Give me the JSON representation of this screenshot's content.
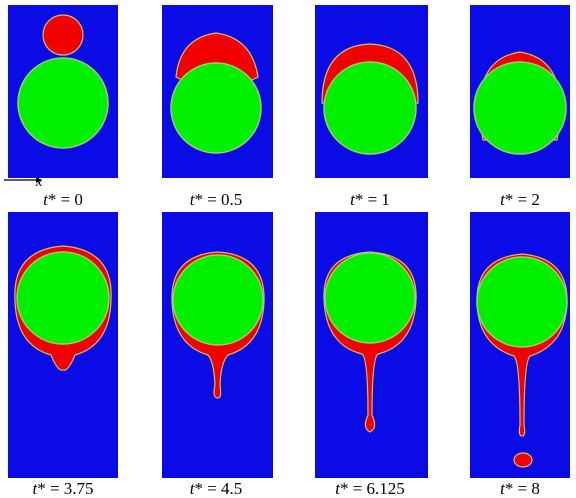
{
  "axis_label": "x",
  "panels": [
    {
      "var": "t",
      "rest": "* = 0"
    },
    {
      "var": "t",
      "rest": "* = 0.5"
    },
    {
      "var": "t",
      "rest": "* = 1"
    },
    {
      "var": "t",
      "rest": "* = 2"
    },
    {
      "var": "t",
      "rest": "* = 3.75"
    },
    {
      "var": "t",
      "rest": "* = 4.5"
    },
    {
      "var": "t",
      "rest": "* = 6.125"
    },
    {
      "var": "t",
      "rest": "* = 8"
    }
  ]
}
